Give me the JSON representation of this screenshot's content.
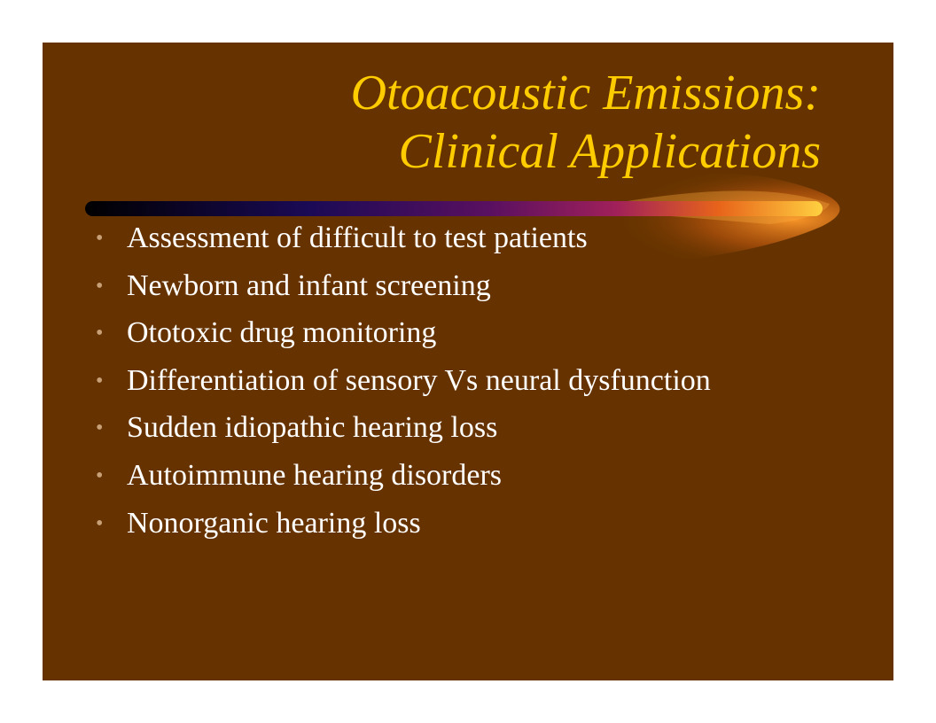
{
  "slide": {
    "background_color": "#663300",
    "title_color": "#ffcc00",
    "bullet_color": "#c8a078",
    "text_color": "#ffffff",
    "title_lines": [
      "Otoacoustic Emissions:",
      "Clinical Applications"
    ],
    "bullets": [
      "Assessment of difficult to test patients",
      "Newborn and infant screening",
      "Ototoxic drug monitoring",
      "Differentiation of sensory Vs neural  dysfunction",
      "Sudden idiopathic hearing loss",
      "Autoimmune hearing disorders",
      "Nonorganic hearing loss"
    ],
    "bullet_glyph": "•",
    "divider_icon": "comet-swoosh"
  }
}
